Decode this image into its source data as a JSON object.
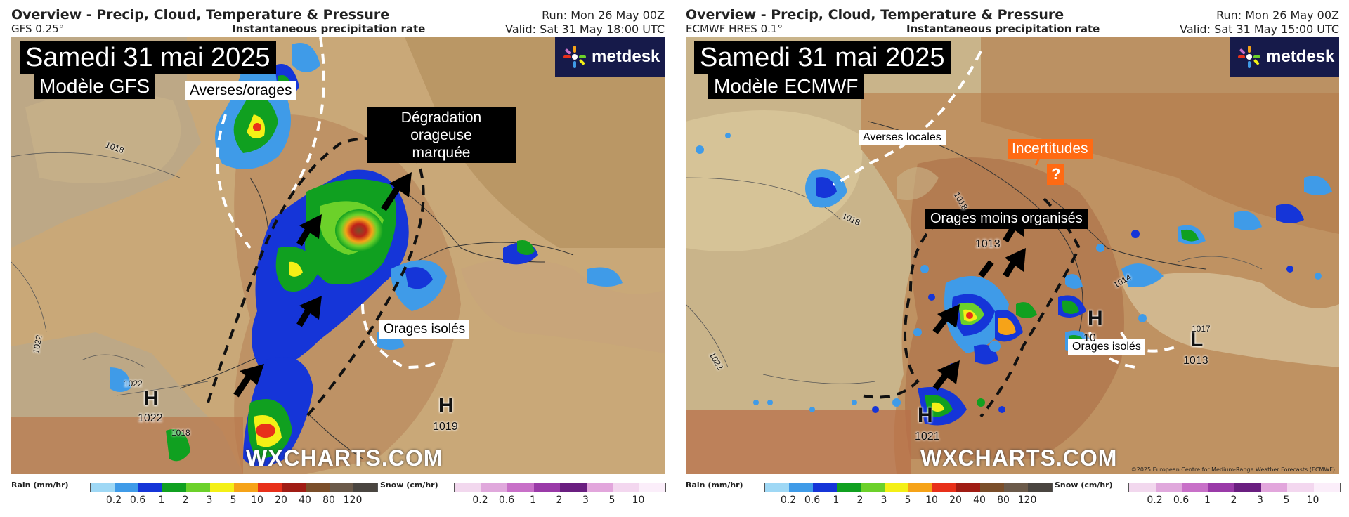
{
  "left": {
    "header_title": "Overview - Precip, Cloud, Temperature & Pressure",
    "model": "GFS 0.25°",
    "subtitle": "Instantaneous precipitation rate",
    "run": "Run: Mon 26 May 00Z",
    "valid": "Valid: Sat 31 May 18:00 UTC",
    "date_label": "Samedi 31 mai 2025",
    "model_label": "Modèle GFS",
    "annotations": {
      "showers": "Averses/orages",
      "degradation_line1": "Dégradation orageuse",
      "degradation_line2": "marquée",
      "isolated": "Orages isolés"
    },
    "pressure": {
      "h1_letter": "H",
      "h1_value": "1022",
      "h2_letter": "H",
      "h2_value": "1019",
      "isobar_1018": "1018",
      "isobar_1022": "1022",
      "isobar_1022b": "1022",
      "isobar_1018b": "1018"
    },
    "watermark": "WXCHARTS.COM",
    "logo": "metdesk"
  },
  "right": {
    "header_title": "Overview - Precip, Cloud, Temperature & Pressure",
    "model": "ECMWF HRES 0.1°",
    "subtitle": "Instantaneous precipitation rate",
    "run": "Run: Mon 26 May 00Z",
    "valid": "Valid: Sat 31 May 15:00 UTC",
    "date_label": "Samedi 31 mai 2025",
    "model_label": "Modèle ECMWF",
    "annotations": {
      "local_showers": "Averses locales",
      "uncertainties": "Incertitudes",
      "question": "?",
      "less_organised": "Orages moins organisés",
      "isolated": "Orages isolés"
    },
    "pressure": {
      "h1_letter": "H",
      "h1_value": "1021",
      "h2_letter": "H",
      "h2_value": "10",
      "l1_letter": "L",
      "l1_value": "1013",
      "center_value": "1013",
      "isobar_1018": "1018",
      "isobar_1022": "1022",
      "isobar_1017": "1017",
      "isobar_1014": "1014",
      "isobar_1018b": "1018"
    },
    "watermark": "WXCHARTS.COM",
    "logo": "metdesk",
    "copyright": "©2025 European Centre for Medium-Range Weather Forecasts (ECMWF)"
  },
  "legend": {
    "rain_title": "Rain (mm/hr)",
    "snow_title": "Snow (cm/hr)",
    "rain_ticks": [
      "0.2",
      "0.6",
      "1",
      "2",
      "3",
      "5",
      "10",
      "20",
      "40",
      "80",
      "120"
    ],
    "snow_ticks": [
      "0.2",
      "0.6",
      "1",
      "2",
      "3",
      "5",
      "10"
    ],
    "rain_colors": [
      "#9fd8f5",
      "#3f9be8",
      "#1535d8",
      "#10a020",
      "#6cd12a",
      "#f4f016",
      "#f6a318",
      "#e8301a",
      "#a01c14",
      "#7a4e2a",
      "#6b5a4a",
      "#4a4540"
    ],
    "snow_colors": [
      "#f2d8ee",
      "#e0a8dc",
      "#c870c8",
      "#9a3aa8",
      "#6a1e80",
      "#e2a6dc",
      "#f3d7ef",
      "#fbeefa"
    ]
  },
  "colors": {
    "land": "#c7a774",
    "sea": "#b7a58a",
    "dark_brown": "#a86f4c",
    "logo_bg": "#161a4a",
    "orange": "#ff6a13"
  }
}
